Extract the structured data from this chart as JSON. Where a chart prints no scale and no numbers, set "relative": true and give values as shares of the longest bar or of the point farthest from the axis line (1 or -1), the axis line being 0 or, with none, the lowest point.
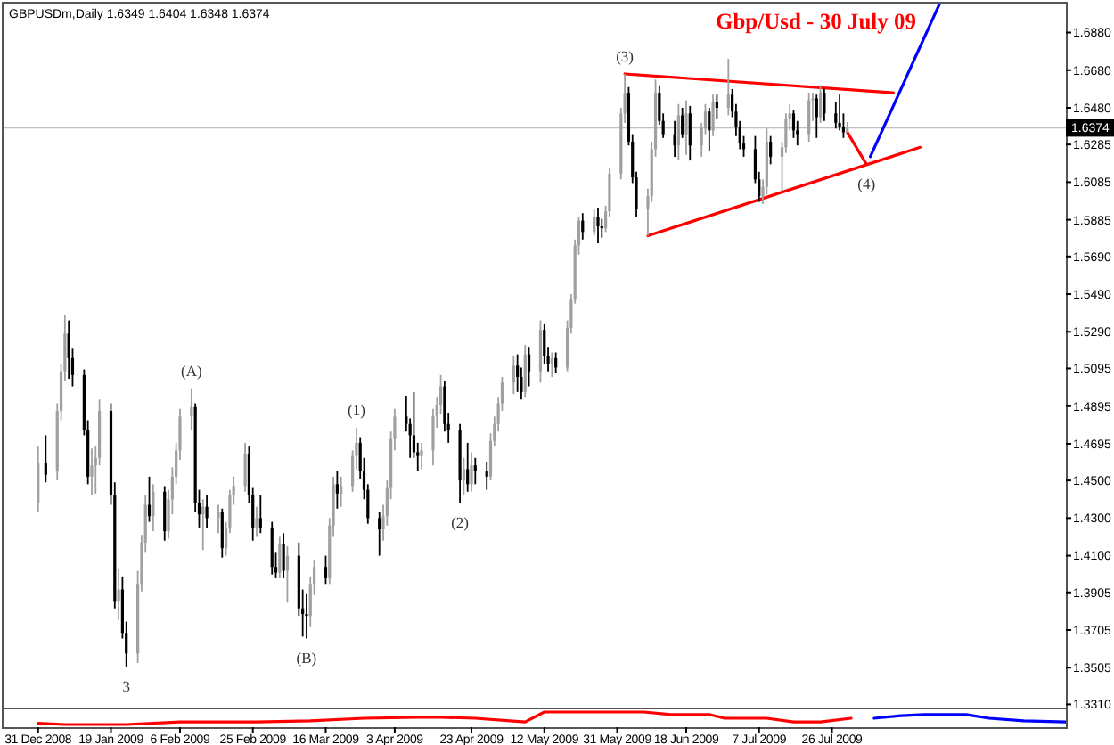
{
  "chart_data": [
    {
      "type": "candlestick",
      "title": "Gbp/Usd - 30 July 09",
      "subtitle": "GBPUSDm,Daily 1.6349 1.6404 1.6348 1.6374",
      "x": [
        "2008-12-31",
        "2009-01-02",
        "2009-01-05",
        "2009-01-06",
        "2009-01-07",
        "2009-01-08",
        "2009-01-09",
        "2009-01-12",
        "2009-01-13",
        "2009-01-14",
        "2009-01-15",
        "2009-01-16",
        "2009-01-19",
        "2009-01-20",
        "2009-01-21",
        "2009-01-22",
        "2009-01-23",
        "2009-01-26",
        "2009-01-27",
        "2009-01-28",
        "2009-01-29",
        "2009-01-30",
        "2009-02-02",
        "2009-02-03",
        "2009-02-04",
        "2009-02-05",
        "2009-02-06",
        "2009-02-09",
        "2009-02-10",
        "2009-02-11",
        "2009-02-12",
        "2009-02-13",
        "2009-02-16",
        "2009-02-17",
        "2009-02-18",
        "2009-02-19",
        "2009-02-20",
        "2009-02-23",
        "2009-02-24",
        "2009-02-25",
        "2009-02-26",
        "2009-02-27",
        "2009-03-02",
        "2009-03-03",
        "2009-03-04",
        "2009-03-05",
        "2009-03-06",
        "2009-03-09",
        "2009-03-10",
        "2009-03-11",
        "2009-03-12",
        "2009-03-13",
        "2009-03-16",
        "2009-03-17",
        "2009-03-18",
        "2009-03-19",
        "2009-03-20",
        "2009-03-23",
        "2009-03-24",
        "2009-03-25",
        "2009-03-26",
        "2009-03-27",
        "2009-03-30",
        "2009-03-31",
        "2009-04-01",
        "2009-04-02",
        "2009-04-03",
        "2009-04-06",
        "2009-04-07",
        "2009-04-08",
        "2009-04-09",
        "2009-04-10",
        "2009-04-13",
        "2009-04-14",
        "2009-04-15",
        "2009-04-16",
        "2009-04-17",
        "2009-04-20",
        "2009-04-21",
        "2009-04-22",
        "2009-04-23",
        "2009-04-24",
        "2009-04-27",
        "2009-04-28",
        "2009-04-29",
        "2009-04-30",
        "2009-05-01",
        "2009-05-04",
        "2009-05-05",
        "2009-05-06",
        "2009-05-07",
        "2009-05-08",
        "2009-05-11",
        "2009-05-12",
        "2009-05-13",
        "2009-05-14",
        "2009-05-15",
        "2009-05-18",
        "2009-05-19",
        "2009-05-20",
        "2009-05-21",
        "2009-05-22",
        "2009-05-25",
        "2009-05-26",
        "2009-05-27",
        "2009-05-28",
        "2009-05-29",
        "2009-06-01",
        "2009-06-02",
        "2009-06-03",
        "2009-06-04",
        "2009-06-05",
        "2009-06-08",
        "2009-06-09",
        "2009-06-10",
        "2009-06-11",
        "2009-06-12",
        "2009-06-15",
        "2009-06-16",
        "2009-06-17",
        "2009-06-18",
        "2009-06-19",
        "2009-06-22",
        "2009-06-23",
        "2009-06-24",
        "2009-06-25",
        "2009-06-26",
        "2009-06-29",
        "2009-06-30",
        "2009-07-01",
        "2009-07-02",
        "2009-07-03",
        "2009-07-06",
        "2009-07-07",
        "2009-07-08",
        "2009-07-09",
        "2009-07-10",
        "2009-07-13",
        "2009-07-14",
        "2009-07-15",
        "2009-07-16",
        "2009-07-17",
        "2009-07-20",
        "2009-07-21",
        "2009-07-22",
        "2009-07-23",
        "2009-07-24",
        "2009-07-27",
        "2009-07-28",
        "2009-07-29",
        "2009-07-30"
      ],
      "ohlc": [
        [
          1.438,
          1.468,
          1.433,
          1.459
        ],
        [
          1.459,
          1.474,
          1.449,
          1.453
        ],
        [
          1.455,
          1.491,
          1.45,
          1.487
        ],
        [
          1.487,
          1.512,
          1.482,
          1.508
        ],
        [
          1.508,
          1.538,
          1.503,
          1.528
        ],
        [
          1.528,
          1.535,
          1.504,
          1.515
        ],
        [
          1.515,
          1.52,
          1.5,
          1.506
        ],
        [
          1.506,
          1.509,
          1.474,
          1.477
        ],
        [
          1.477,
          1.482,
          1.448,
          1.452
        ],
        [
          1.452,
          1.467,
          1.442,
          1.458
        ],
        [
          1.458,
          1.468,
          1.443,
          1.462
        ],
        [
          1.462,
          1.493,
          1.458,
          1.487
        ],
        [
          1.487,
          1.491,
          1.437,
          1.442
        ],
        [
          1.442,
          1.449,
          1.382,
          1.386
        ],
        [
          1.386,
          1.403,
          1.376,
          1.392
        ],
        [
          1.392,
          1.399,
          1.366,
          1.369
        ],
        [
          1.369,
          1.375,
          1.351,
          1.358
        ],
        [
          1.358,
          1.402,
          1.353,
          1.395
        ],
        [
          1.395,
          1.421,
          1.391,
          1.417
        ],
        [
          1.417,
          1.442,
          1.412,
          1.437
        ],
        [
          1.437,
          1.452,
          1.428,
          1.431
        ],
        [
          1.431,
          1.448,
          1.423,
          1.444
        ],
        [
          1.444,
          1.447,
          1.418,
          1.423
        ],
        [
          1.423,
          1.445,
          1.419,
          1.44
        ],
        [
          1.44,
          1.457,
          1.432,
          1.452
        ],
        [
          1.452,
          1.47,
          1.448,
          1.466
        ],
        [
          1.466,
          1.488,
          1.461,
          1.484
        ],
        [
          1.484,
          1.499,
          1.477,
          1.489
        ],
        [
          1.489,
          1.491,
          1.433,
          1.438
        ],
        [
          1.438,
          1.445,
          1.425,
          1.432
        ],
        [
          1.432,
          1.44,
          1.413,
          1.436
        ],
        [
          1.436,
          1.442,
          1.425,
          1.43
        ],
        [
          1.43,
          1.437,
          1.422,
          1.433
        ],
        [
          1.433,
          1.435,
          1.409,
          1.414
        ],
        [
          1.414,
          1.428,
          1.41,
          1.425
        ],
        [
          1.425,
          1.445,
          1.422,
          1.442
        ],
        [
          1.442,
          1.452,
          1.437,
          1.447
        ],
        [
          1.447,
          1.47,
          1.444,
          1.464
        ],
        [
          1.464,
          1.468,
          1.438,
          1.442
        ],
        [
          1.442,
          1.446,
          1.418,
          1.425
        ],
        [
          1.425,
          1.436,
          1.42,
          1.43
        ],
        [
          1.43,
          1.442,
          1.422,
          1.425
        ],
        [
          1.425,
          1.428,
          1.4,
          1.404
        ],
        [
          1.404,
          1.412,
          1.398,
          1.401
        ],
        [
          1.401,
          1.42,
          1.398,
          1.416
        ],
        [
          1.416,
          1.422,
          1.398,
          1.402
        ],
        [
          1.402,
          1.415,
          1.385,
          1.41
        ],
        [
          1.41,
          1.417,
          1.378,
          1.382
        ],
        [
          1.382,
          1.392,
          1.367,
          1.379
        ],
        [
          1.379,
          1.39,
          1.366,
          1.378
        ],
        [
          1.378,
          1.399,
          1.372,
          1.395
        ],
        [
          1.395,
          1.408,
          1.389,
          1.404
        ],
        [
          1.404,
          1.41,
          1.395,
          1.398
        ],
        [
          1.398,
          1.43,
          1.395,
          1.426
        ],
        [
          1.426,
          1.452,
          1.42,
          1.448
        ],
        [
          1.448,
          1.455,
          1.435,
          1.443
        ],
        [
          1.443,
          1.452,
          1.436,
          1.447
        ],
        [
          1.447,
          1.466,
          1.444,
          1.463
        ],
        [
          1.463,
          1.478,
          1.456,
          1.47
        ],
        [
          1.47,
          1.473,
          1.451,
          1.455
        ],
        [
          1.455,
          1.462,
          1.44,
          1.445
        ],
        [
          1.445,
          1.448,
          1.427,
          1.43
        ],
        [
          1.43,
          1.433,
          1.41,
          1.424
        ],
        [
          1.424,
          1.437,
          1.418,
          1.431
        ],
        [
          1.431,
          1.45,
          1.426,
          1.446
        ],
        [
          1.446,
          1.476,
          1.44,
          1.472
        ],
        [
          1.472,
          1.488,
          1.466,
          1.484
        ],
        [
          1.484,
          1.495,
          1.476,
          1.48
        ],
        [
          1.48,
          1.483,
          1.462,
          1.474
        ],
        [
          1.474,
          1.497,
          1.462,
          1.465
        ],
        [
          1.465,
          1.47,
          1.455,
          1.463
        ],
        [
          1.463,
          1.47,
          1.456,
          1.466
        ],
        [
          1.466,
          1.488,
          1.458,
          1.484
        ],
        [
          1.484,
          1.494,
          1.478,
          1.49
        ],
        [
          1.49,
          1.506,
          1.485,
          1.5
        ],
        [
          1.5,
          1.503,
          1.476,
          1.48
        ],
        [
          1.48,
          1.486,
          1.47,
          1.477
        ],
        [
          1.477,
          1.48,
          1.438,
          1.45
        ],
        [
          1.45,
          1.462,
          1.442,
          1.456
        ],
        [
          1.456,
          1.47,
          1.444,
          1.448
        ],
        [
          1.448,
          1.465,
          1.444,
          1.458
        ],
        [
          1.458,
          1.462,
          1.448,
          1.455
        ],
        [
          1.455,
          1.46,
          1.445,
          1.452
        ],
        [
          1.452,
          1.475,
          1.45,
          1.471
        ],
        [
          1.471,
          1.484,
          1.468,
          1.48
        ],
        [
          1.48,
          1.494,
          1.476,
          1.491
        ],
        [
          1.491,
          1.505,
          1.487,
          1.502
        ],
        [
          1.502,
          1.516,
          1.496,
          1.511
        ],
        [
          1.511,
          1.517,
          1.497,
          1.505
        ],
        [
          1.505,
          1.51,
          1.493,
          1.497
        ],
        [
          1.497,
          1.522,
          1.494,
          1.517
        ],
        [
          1.517,
          1.521,
          1.5,
          1.508
        ],
        [
          1.508,
          1.535,
          1.502,
          1.53
        ],
        [
          1.53,
          1.533,
          1.512,
          1.516
        ],
        [
          1.516,
          1.521,
          1.508,
          1.512
        ],
        [
          1.512,
          1.518,
          1.505,
          1.515
        ],
        [
          1.515,
          1.518,
          1.507,
          1.51
        ],
        [
          1.51,
          1.535,
          1.508,
          1.531
        ],
        [
          1.531,
          1.549,
          1.528,
          1.546
        ],
        [
          1.546,
          1.578,
          1.544,
          1.575
        ],
        [
          1.575,
          1.59,
          1.57,
          1.588
        ],
        [
          1.588,
          1.592,
          1.578,
          1.582
        ],
        [
          1.582,
          1.594,
          1.58,
          1.59
        ],
        [
          1.59,
          1.595,
          1.576,
          1.585
        ],
        [
          1.585,
          1.589,
          1.579,
          1.584
        ],
        [
          1.584,
          1.596,
          1.582,
          1.593
        ],
        [
          1.593,
          1.616,
          1.59,
          1.613
        ],
        [
          1.613,
          1.648,
          1.61,
          1.645
        ],
        [
          1.645,
          1.666,
          1.64,
          1.656
        ],
        [
          1.656,
          1.659,
          1.628,
          1.63
        ],
        [
          1.63,
          1.634,
          1.608,
          1.611
        ],
        [
          1.611,
          1.614,
          1.59,
          1.594
        ],
        [
          1.594,
          1.605,
          1.58,
          1.601
        ],
        [
          1.601,
          1.63,
          1.598,
          1.626
        ],
        [
          1.626,
          1.663,
          1.622,
          1.656
        ],
        [
          1.656,
          1.66,
          1.639,
          1.641
        ],
        [
          1.641,
          1.645,
          1.632,
          1.634
        ],
        [
          1.634,
          1.641,
          1.622,
          1.628
        ],
        [
          1.628,
          1.65,
          1.62,
          1.644
        ],
        [
          1.644,
          1.648,
          1.632,
          1.634
        ],
        [
          1.634,
          1.652,
          1.623,
          1.645
        ],
        [
          1.645,
          1.649,
          1.62,
          1.628
        ],
        [
          1.628,
          1.64,
          1.622,
          1.637
        ],
        [
          1.637,
          1.65,
          1.634,
          1.646
        ],
        [
          1.646,
          1.648,
          1.625,
          1.636
        ],
        [
          1.636,
          1.655,
          1.633,
          1.651
        ],
        [
          1.651,
          1.655,
          1.642,
          1.648
        ],
        [
          1.648,
          1.674,
          1.644,
          1.655
        ],
        [
          1.655,
          1.658,
          1.643,
          1.646
        ],
        [
          1.646,
          1.65,
          1.633,
          1.638
        ],
        [
          1.638,
          1.641,
          1.626,
          1.629
        ],
        [
          1.629,
          1.633,
          1.622,
          1.626
        ],
        [
          1.626,
          1.633,
          1.608,
          1.61
        ],
        [
          1.61,
          1.614,
          1.598,
          1.601
        ],
        [
          1.601,
          1.61,
          1.597,
          1.606
        ],
        [
          1.606,
          1.637,
          1.602,
          1.63
        ],
        [
          1.63,
          1.633,
          1.618,
          1.622
        ],
        [
          1.622,
          1.63,
          1.604,
          1.627
        ],
        [
          1.627,
          1.645,
          1.624,
          1.642
        ],
        [
          1.642,
          1.65,
          1.636,
          1.645
        ],
        [
          1.645,
          1.647,
          1.632,
          1.636
        ],
        [
          1.636,
          1.641,
          1.628,
          1.634
        ],
        [
          1.634,
          1.656,
          1.63,
          1.652
        ],
        [
          1.652,
          1.656,
          1.641,
          1.653
        ],
        [
          1.653,
          1.655,
          1.632,
          1.643
        ],
        [
          1.643,
          1.66,
          1.64,
          1.656
        ],
        [
          1.656,
          1.658,
          1.641,
          1.645
        ],
        [
          1.645,
          1.651,
          1.637,
          1.64
        ],
        [
          1.64,
          1.655,
          1.636,
          1.638
        ],
        [
          1.638,
          1.645,
          1.632,
          1.635
        ],
        [
          1.6349,
          1.6404,
          1.6348,
          1.6374
        ]
      ],
      "colors": [
        "#a0a0a0",
        "#000000",
        "#a0a0a0",
        "#a0a0a0",
        "#a0a0a0",
        "#000000",
        "#000000",
        "#000000",
        "#000000",
        "#a0a0a0",
        "#a0a0a0",
        "#a0a0a0",
        "#000000",
        "#000000",
        "#a0a0a0",
        "#000000",
        "#000000",
        "#a0a0a0",
        "#a0a0a0",
        "#a0a0a0",
        "#000000",
        "#a0a0a0",
        "#000000",
        "#a0a0a0",
        "#a0a0a0",
        "#a0a0a0",
        "#a0a0a0",
        "#a0a0a0",
        "#000000",
        "#000000",
        "#a0a0a0",
        "#000000",
        "#a0a0a0",
        "#000000",
        "#a0a0a0",
        "#a0a0a0",
        "#a0a0a0",
        "#a0a0a0",
        "#000000",
        "#000000",
        "#a0a0a0",
        "#000000",
        "#000000",
        "#000000",
        "#a0a0a0",
        "#000000",
        "#a0a0a0",
        "#000000",
        "#000000",
        "#000000",
        "#a0a0a0",
        "#a0a0a0",
        "#000000",
        "#a0a0a0",
        "#a0a0a0",
        "#000000",
        "#a0a0a0",
        "#a0a0a0",
        "#a0a0a0",
        "#000000",
        "#000000",
        "#000000",
        "#000000",
        "#a0a0a0",
        "#a0a0a0",
        "#a0a0a0",
        "#a0a0a0",
        "#000000",
        "#000000",
        "#000000",
        "#000000",
        "#a0a0a0",
        "#a0a0a0",
        "#a0a0a0",
        "#a0a0a0",
        "#000000",
        "#000000",
        "#000000",
        "#a0a0a0",
        "#000000",
        "#a0a0a0",
        "#000000",
        "#000000",
        "#a0a0a0",
        "#a0a0a0",
        "#a0a0a0",
        "#a0a0a0",
        "#a0a0a0",
        "#000000",
        "#000000",
        "#a0a0a0",
        "#000000",
        "#a0a0a0",
        "#000000",
        "#000000",
        "#a0a0a0",
        "#000000",
        "#a0a0a0",
        "#a0a0a0",
        "#a0a0a0",
        "#a0a0a0",
        "#000000",
        "#a0a0a0",
        "#000000",
        "#000000",
        "#a0a0a0",
        "#a0a0a0",
        "#a0a0a0",
        "#a0a0a0",
        "#000000",
        "#000000",
        "#000000",
        "#a0a0a0",
        "#a0a0a0",
        "#a0a0a0",
        "#000000",
        "#000000",
        "#000000",
        "#a0a0a0",
        "#000000",
        "#a0a0a0",
        "#000000",
        "#a0a0a0",
        "#a0a0a0",
        "#000000",
        "#a0a0a0",
        "#000000",
        "#a0a0a0",
        "#000000",
        "#000000",
        "#000000",
        "#000000",
        "#000000",
        "#000000",
        "#a0a0a0",
        "#a0a0a0",
        "#000000",
        "#a0a0a0",
        "#a0a0a0",
        "#a0a0a0",
        "#000000",
        "#000000",
        "#a0a0a0",
        "#a0a0a0",
        "#000000",
        "#a0a0a0",
        "#000000",
        "#000000",
        "#000000",
        "#000000",
        "#a0a0a0"
      ],
      "series": [
        {
          "type": "line",
          "color": "#ff0000",
          "x": [
            "2009-06-02",
            "2009-08-11"
          ],
          "values": [
            1.666,
            1.656
          ]
        },
        {
          "type": "line",
          "color": "#ff0000",
          "x": [
            "2009-06-08",
            "2009-08-18"
          ],
          "values": [
            1.58,
            1.627
          ]
        },
        {
          "type": "line",
          "color": "#ff0000",
          "x": [
            "2009-07-30",
            "2009-08-04"
          ],
          "values": [
            1.635,
            1.618
          ]
        },
        {
          "type": "line",
          "color": "#0000ff",
          "x": [
            "2009-08-05",
            "2009-08-23"
          ],
          "values": [
            1.622,
            1.703
          ]
        }
      ],
      "xlim": [
        "2008-12-22",
        "2009-09-25"
      ],
      "ylim": [
        1.3293,
        1.7034
      ],
      "yticks": [
        {
          "value": 1.688,
          "label": "1.6880"
        },
        {
          "value": 1.668,
          "label": "1.6680"
        },
        {
          "value": 1.648,
          "label": "1.6480"
        },
        {
          "value": 1.6285,
          "label": "1.6285"
        },
        {
          "value": 1.6085,
          "label": "1.6085"
        },
        {
          "value": 1.5885,
          "label": "1.5885"
        },
        {
          "value": 1.569,
          "label": "1.5690"
        },
        {
          "value": 1.549,
          "label": "1.5490"
        },
        {
          "value": 1.529,
          "label": "1.5290"
        },
        {
          "value": 1.5095,
          "label": "1.5095"
        },
        {
          "value": 1.4895,
          "label": "1.4895"
        },
        {
          "value": 1.4695,
          "label": "1.4695"
        },
        {
          "value": 1.45,
          "label": "1.4500"
        },
        {
          "value": 1.43,
          "label": "1.4300"
        },
        {
          "value": 1.41,
          "label": "1.4100"
        },
        {
          "value": 1.3905,
          "label": "1.3905"
        },
        {
          "value": 1.3705,
          "label": "1.3705"
        },
        {
          "value": 1.3505,
          "label": "1.3505"
        },
        {
          "value": 1.331,
          "label": "1.3310"
        }
      ],
      "tick_labels": "y",
      "ref_lines": [
        {
          "axis": "y",
          "value": 1.6374,
          "label": "1.6374",
          "color": "#c0c0c0"
        }
      ],
      "annotations": [
        {
          "text": "(A)",
          "x": "2009-02-09",
          "y": 1.499
        },
        {
          "text": "(B)",
          "x": "2009-03-11",
          "y": 1.366
        },
        {
          "text": "(1)",
          "x": "2009-03-24",
          "y": 1.478
        },
        {
          "text": "(2)",
          "x": "2009-04-20",
          "y": 1.438
        },
        {
          "text": "(3)",
          "x": "2009-06-02",
          "y": 1.666
        },
        {
          "text": "(4)",
          "x": "2009-08-04",
          "y": 1.618
        },
        {
          "text": "3",
          "x": "2009-01-23",
          "y": 1.351
        }
      ]
    },
    {
      "type": "line",
      "relative": true,
      "tick_labels": "x",
      "xlim": [
        "2008-12-22",
        "2009-09-25"
      ],
      "xticks": [
        {
          "value": "2008-12-31",
          "label": "31 Dec 2008"
        },
        {
          "value": "2009-01-19",
          "label": "19 Jan 2009"
        },
        {
          "value": "2009-02-06",
          "label": "6 Feb 2009"
        },
        {
          "value": "2009-02-25",
          "label": "25 Feb 2009"
        },
        {
          "value": "2009-03-16",
          "label": "16 Mar 2009"
        },
        {
          "value": "2009-04-03",
          "label": "3 Apr 2009"
        },
        {
          "value": "2009-04-23",
          "label": "23 Apr 2009"
        },
        {
          "value": "2009-05-12",
          "label": "12 May 2009"
        },
        {
          "value": "2009-05-31",
          "label": "31 May 2009"
        },
        {
          "value": "2009-06-18",
          "label": "18 Jun 2009"
        },
        {
          "value": "2009-07-07",
          "label": "7 Jul 2009"
        },
        {
          "value": "2009-07-26",
          "label": "26 Jul 2009"
        }
      ],
      "series": [
        {
          "color": "#ff0000",
          "x": [
            "2008-12-31",
            "2009-01-07",
            "2009-01-23",
            "2009-02-06",
            "2009-02-26",
            "2009-03-12",
            "2009-03-26",
            "2009-04-13",
            "2009-04-24",
            "2009-05-07",
            "2009-05-12",
            "2009-06-07",
            "2009-06-14",
            "2009-06-24",
            "2009-06-28",
            "2009-07-09",
            "2009-07-16",
            "2009-07-23",
            "2009-07-31"
          ],
          "values": [
            0.1,
            0,
            0,
            0.2,
            0.2,
            0.3,
            0.5,
            0.6,
            0.5,
            0.2,
            1,
            1,
            0.8,
            0.8,
            0.5,
            0.5,
            0.2,
            0.2,
            0.5
          ]
        },
        {
          "color": "#0000ff",
          "x": [
            "2009-08-06",
            "2009-08-13",
            "2009-08-19",
            "2009-08-30",
            "2009-09-05",
            "2009-09-14",
            "2009-09-25"
          ],
          "values": [
            0.5,
            0.7,
            0.8,
            0.8,
            0.5,
            0.3,
            0.2
          ]
        }
      ]
    }
  ]
}
